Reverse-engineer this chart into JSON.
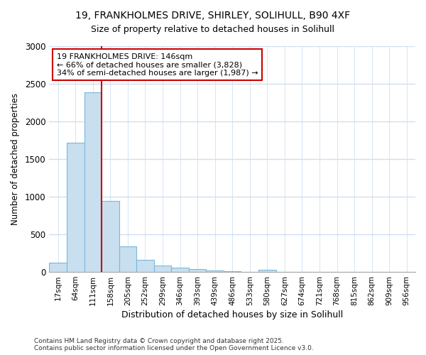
{
  "title_line1": "19, FRANKHOLMES DRIVE, SHIRLEY, SOLIHULL, B90 4XF",
  "title_line2": "Size of property relative to detached houses in Solihull",
  "xlabel": "Distribution of detached houses by size in Solihull",
  "ylabel": "Number of detached properties",
  "categories": [
    "17sqm",
    "64sqm",
    "111sqm",
    "158sqm",
    "205sqm",
    "252sqm",
    "299sqm",
    "346sqm",
    "393sqm",
    "439sqm",
    "486sqm",
    "533sqm",
    "580sqm",
    "627sqm",
    "674sqm",
    "721sqm",
    "768sqm",
    "815sqm",
    "862sqm",
    "909sqm",
    "956sqm"
  ],
  "values": [
    120,
    1720,
    2390,
    940,
    340,
    160,
    90,
    60,
    35,
    15,
    10,
    5,
    25,
    0,
    0,
    0,
    0,
    0,
    0,
    0,
    0
  ],
  "bar_color": "#c8dff0",
  "bar_edge_color": "#7ab8d8",
  "vline_x_idx": 2.5,
  "vline_color": "#cc0000",
  "annotation_text": "19 FRANKHOLMES DRIVE: 146sqm\n← 66% of detached houses are smaller (3,828)\n34% of semi-detached houses are larger (1,987) →",
  "annotation_box_facecolor": "#ffffff",
  "annotation_box_edgecolor": "#cc0000",
  "ylim": [
    0,
    3000
  ],
  "yticks": [
    0,
    500,
    1000,
    1500,
    2000,
    2500,
    3000
  ],
  "bg_color": "#ffffff",
  "plot_bg_color": "#ffffff",
  "grid_color": "#d0e0f0",
  "footer": "Contains HM Land Registry data © Crown copyright and database right 2025.\nContains public sector information licensed under the Open Government Licence v3.0."
}
